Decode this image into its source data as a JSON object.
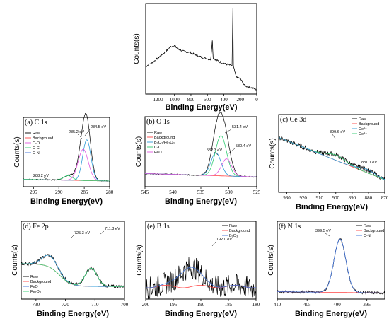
{
  "colors": {
    "raw": "#000000",
    "background": "#ff4444",
    "c1": "#3b6fd8",
    "c2": "#2ecc71",
    "c3": "#e056e0",
    "c4": "#2e9bd8"
  },
  "chart_data": [
    {
      "id": "survey",
      "type": "line",
      "title": "",
      "xlabel": "Binding Energy(eV)",
      "ylabel": "Counts(s)",
      "xlim": [
        1350,
        0
      ],
      "xticks": [
        1200,
        1000,
        800,
        600,
        400,
        200,
        0
      ],
      "series": [
        {
          "name": "Raw",
          "points": [
            [
              1350,
              0.32
            ],
            [
              1250,
              0.38
            ],
            [
              1150,
              0.46
            ],
            [
              1100,
              0.5
            ],
            [
              1050,
              0.55
            ],
            [
              1000,
              0.56
            ],
            [
              950,
              0.52
            ],
            [
              900,
              0.5
            ],
            [
              850,
              0.49
            ],
            [
              800,
              0.48
            ],
            [
              750,
              0.46
            ],
            [
              700,
              0.44
            ],
            [
              650,
              0.42
            ],
            [
              600,
              0.41
            ],
            [
              560,
              0.4
            ],
            [
              540,
              0.62
            ],
            [
              530,
              0.42
            ],
            [
              500,
              0.4
            ],
            [
              460,
              0.38
            ],
            [
              420,
              0.36
            ],
            [
              400,
              0.36
            ],
            [
              380,
              0.35
            ],
            [
              340,
              0.34
            ],
            [
              300,
              0.33
            ],
            [
              290,
              1.0
            ],
            [
              284,
              0.32
            ],
            [
              250,
              0.2
            ],
            [
              200,
              0.18
            ],
            [
              150,
              0.1
            ],
            [
              100,
              0.08
            ],
            [
              50,
              0.07
            ],
            [
              0,
              0.05
            ]
          ]
        }
      ],
      "legend": []
    },
    {
      "id": "C1s",
      "type": "line",
      "title": "(a) C 1s",
      "xlabel": "Binding Energy(eV)",
      "ylabel": "Counts(s)",
      "xlim": [
        297,
        280
      ],
      "xticks": [
        295,
        290,
        285,
        280
      ],
      "annotations": [
        "284.5 eV",
        "285.2 eV",
        "288.2 eV"
      ],
      "legend": [
        "Raw",
        "Background",
        "C-O",
        "C-C",
        "C-N"
      ]
    },
    {
      "id": "O1s",
      "type": "line",
      "title": "(b) O 1s",
      "xlabel": "Binding Energy(eV)",
      "ylabel": "Counts(s)",
      "xlim": [
        545,
        525
      ],
      "xticks": [
        545,
        540,
        535,
        530,
        525
      ],
      "annotations": [
        "531.4 eV",
        "532.3 eV",
        "530.4 eV"
      ],
      "legend": [
        "Raw",
        "Background",
        "B2O3/Fe2O3",
        "C-O",
        "FeO"
      ]
    },
    {
      "id": "Ce3d",
      "type": "line",
      "title": "(c)  Ce 3d",
      "xlabel": "Binding Energy(eV)",
      "ylabel": "Counts(s)",
      "xlim": [
        935,
        870
      ],
      "xticks": [
        930,
        920,
        910,
        900,
        890,
        880,
        870
      ],
      "annotations": [
        "899.6 eV",
        "881.1 eV"
      ],
      "legend": [
        "Raw",
        "Background",
        "Ce3+",
        "Ce4+"
      ]
    },
    {
      "id": "Fe2p",
      "type": "line",
      "title": "(d) Fe 2p",
      "xlabel": "Binding Energy(eV)",
      "ylabel": "Counts(s)",
      "xlim": [
        735,
        700
      ],
      "xticks": [
        730,
        720,
        710,
        700
      ],
      "annotations": [
        "725.3 eV",
        "711.3 eV"
      ],
      "legend": [
        "Raw",
        "Background",
        "FeO",
        "Fe2O3"
      ]
    },
    {
      "id": "B1s",
      "type": "line",
      "title": "(e) B 1s",
      "xlabel": "Binding Energy(eV)",
      "ylabel": "Counts(s)",
      "xlim": [
        200,
        180
      ],
      "xticks": [
        200,
        195,
        190,
        185,
        180
      ],
      "annotations": [
        "192.0 eV"
      ],
      "legend": [
        "Raw",
        "Background",
        "B2O3"
      ]
    },
    {
      "id": "N1s",
      "type": "line",
      "title": "(f) N 1s",
      "xlabel": "Binding Energy(eV)",
      "ylabel": "Counts(s)",
      "xlim": [
        410,
        392
      ],
      "xticks": [
        410,
        405,
        400,
        395
      ],
      "annotations": [
        "399.5 eV"
      ],
      "legend": [
        "Raw",
        "Background",
        "C-N"
      ]
    }
  ]
}
